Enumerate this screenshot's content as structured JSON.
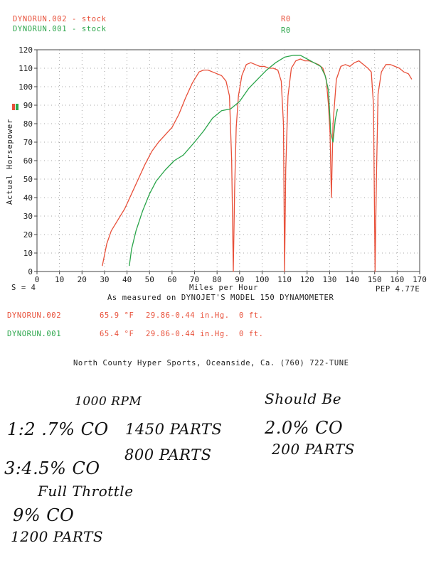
{
  "header": {
    "run2_label": "DYNORUN.002 - stock",
    "run2_tag": "R0",
    "run1_label": "DYNORUN.001 - stock",
    "run1_tag": "R0"
  },
  "footer": {
    "smoothing": "S = 4",
    "pep": "PEP 4.77E",
    "measured": "As measured on DYNOJET'S MODEL 150 DYNAMOMETER",
    "run2_name": "DYNORUN.002",
    "run2_temp": "65.9 °F",
    "run2_baro": "29.86-0.44 in.Hg.",
    "run2_alt": "0 ft.",
    "run1_name": "DYNORUN.001",
    "run1_temp": "65.4 °F",
    "run1_baro": "29.86-0.44 in.Hg.",
    "run1_alt": "0 ft.",
    "shop": "North County Hyper Sports, Oceanside, Ca. (760) 722-TUNE"
  },
  "handwriting": {
    "rpm": "1000 RPM",
    "line1": "1:2 .7% CO",
    "line1_parts": "1450 PARTS",
    "line2": "3:4.5% CO",
    "line2_parts": "800 PARTS",
    "full_throttle": "Full Throttle",
    "ft_co": "9% CO",
    "ft_parts": "1200 PARTS",
    "should_be": "Should Be",
    "target_co": "2.0% CO",
    "target_parts": "200 PARTS"
  },
  "colors": {
    "run2": "#e8503a",
    "run1": "#2aa54a",
    "grid": "#8a8a8a",
    "axis": "#444444"
  },
  "chart_data": {
    "type": "line",
    "xlabel": "Miles per Hour",
    "ylabel": "Actual Horsepower",
    "xlim": [
      0,
      170
    ],
    "ylim": [
      0,
      120
    ],
    "xticks": [
      0,
      10,
      20,
      30,
      40,
      50,
      60,
      70,
      80,
      90,
      100,
      110,
      120,
      130,
      140,
      150,
      160,
      170
    ],
    "yticks": [
      0,
      10,
      20,
      30,
      40,
      50,
      60,
      70,
      80,
      90,
      100,
      110,
      120
    ],
    "grid": true,
    "series": [
      {
        "name": "DYNORUN.002 - stock",
        "color": "#e8503a",
        "x": [
          29,
          31,
          33,
          36,
          39,
          42,
          45,
          48,
          51,
          54,
          57,
          60,
          63,
          66,
          69,
          72,
          74,
          76,
          78,
          80,
          82,
          84,
          85.5,
          86.5,
          87.2,
          87.8,
          88.5,
          89.5,
          91,
          93,
          95,
          97,
          99,
          101,
          103,
          105,
          107,
          108.5,
          109.5,
          110,
          110.5,
          111.5,
          113,
          115,
          117,
          119,
          121,
          123,
          125,
          127,
          128.5,
          129.5,
          130.2,
          130.8,
          131.5,
          133,
          135,
          137,
          139,
          141,
          143,
          145,
          147,
          148.5,
          149.5,
          150.2,
          150.8,
          151.5,
          153,
          155,
          157,
          159,
          161,
          163,
          165,
          166.5
        ],
        "y": [
          3,
          15,
          22,
          28,
          34,
          42,
          50,
          58,
          65,
          70,
          74,
          78,
          85,
          94,
          102,
          108,
          109,
          109,
          108,
          107,
          106,
          103,
          95,
          60,
          0,
          45,
          78,
          95,
          106,
          112,
          113,
          112,
          111,
          111,
          110,
          110,
          109,
          103,
          80,
          0,
          55,
          95,
          110,
          114,
          115,
          114,
          114,
          113,
          112,
          110,
          104,
          90,
          75,
          40,
          80,
          104,
          111,
          112,
          111,
          113,
          114,
          112,
          110,
          108,
          90,
          0,
          50,
          96,
          108,
          112,
          112,
          111,
          110,
          108,
          107,
          104
        ]
      },
      {
        "name": "DYNORUN.001 - stock",
        "color": "#2aa54a",
        "x": [
          41,
          42,
          44,
          47,
          50,
          53,
          57,
          61,
          65,
          70,
          74,
          78,
          82,
          86,
          90,
          94,
          98,
          102,
          106,
          110,
          114,
          117,
          120,
          123,
          126,
          128,
          129.5,
          130.5,
          131.5,
          132.5,
          133.5
        ],
        "y": [
          3,
          12,
          22,
          33,
          42,
          49,
          55,
          60,
          63,
          70,
          76,
          83,
          87,
          88,
          92,
          99,
          104,
          109,
          113,
          116,
          117,
          117,
          115,
          113,
          111,
          106,
          98,
          75,
          70,
          82,
          88
        ]
      }
    ]
  }
}
